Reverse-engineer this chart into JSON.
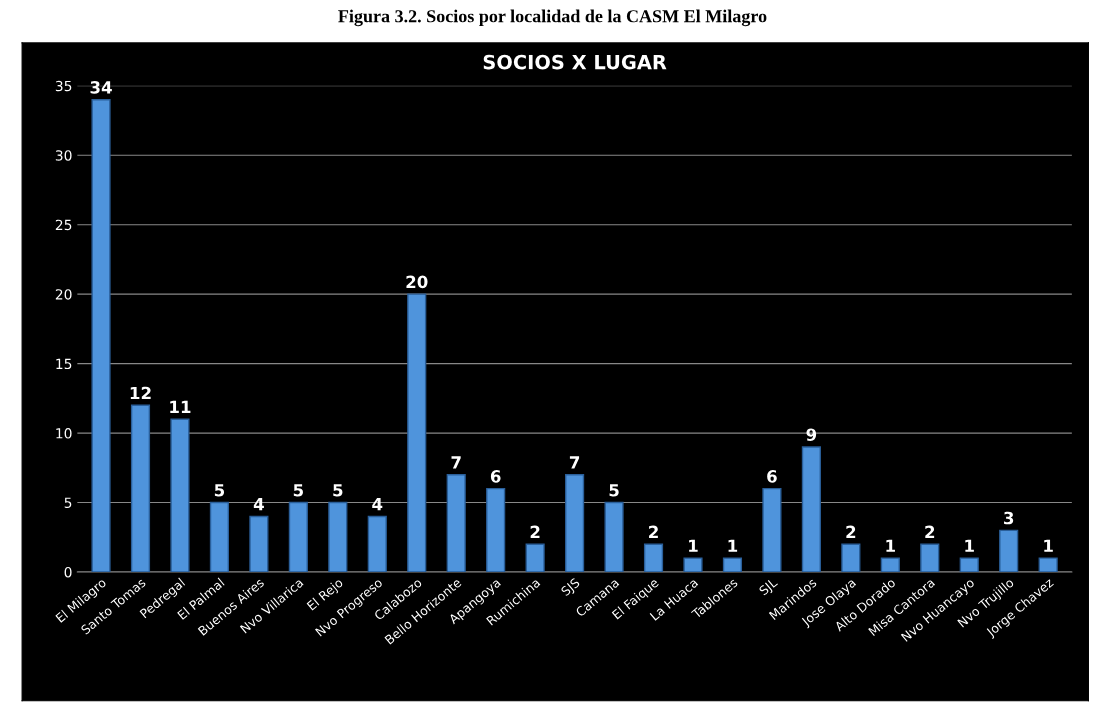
{
  "chart_data": {
    "type": "bar",
    "title": "SOCIOS X LUGAR",
    "annotations": [
      "Figura 3.2. Socios por localidad de la CASM El Milagro"
    ],
    "categories": [
      "El Milagro",
      "Santo Tomas",
      "Pedregal",
      "El Palmal",
      "Buenos Aires",
      "Nvo Villarica",
      "El Rejo",
      "Nvo Progreso",
      "Calabozo",
      "Bello Horizonte",
      "Apangoya",
      "Rumichina",
      "SJS",
      "Camana",
      "El Faique",
      "La Huaca",
      "Tablones",
      "SJL",
      "Marindos",
      "Jose Olaya",
      "Alto Dorado",
      "Misa Cantora",
      "Nvo Huancayo",
      "Nvo Trujillo",
      "Jorge Chavez"
    ],
    "values": [
      34,
      12,
      11,
      5,
      4,
      5,
      5,
      4,
      20,
      7,
      6,
      2,
      7,
      5,
      2,
      1,
      1,
      6,
      9,
      2,
      1,
      2,
      1,
      3,
      1
    ],
    "color": "#4f94dc",
    "ylim": [
      0,
      35
    ],
    "yticks": [
      0,
      5,
      10,
      15,
      20,
      25,
      30,
      35
    ],
    "grid": "y",
    "data_labels": true
  }
}
